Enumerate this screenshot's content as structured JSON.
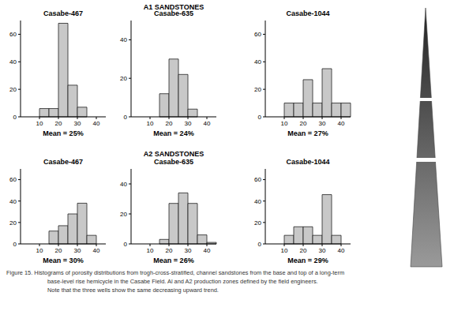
{
  "row_titles": [
    "A1 SANDSTONES",
    "A2 SANDSTONES"
  ],
  "caption": [
    "Figure 15. Histograms of porosity distributions from trogh-cross-stratified, channel sandstones from the base and top of a long-term",
    "base-level rise hemicycle in the Casabe Field. Al and A2 production zones defined by the field engineers.",
    "Note that the three wells show the same decreasing upward trend."
  ],
  "chart_data": [
    {
      "type": "histogram",
      "title": "Casabe-467",
      "annotation": "Mean = 25%",
      "bins": [
        10,
        15,
        20,
        25,
        30,
        35
      ],
      "values": [
        6,
        6,
        68,
        23,
        7
      ],
      "color": "#c8c8c8",
      "xlim": [
        0,
        45
      ],
      "xticks": [
        10,
        20,
        30,
        40
      ],
      "ylim": [
        0,
        70
      ],
      "yticks": [
        0,
        20,
        40,
        60
      ]
    },
    {
      "type": "histogram",
      "title": "Casabe-635",
      "annotation": "Mean = 24%",
      "bins": [
        15,
        20,
        25,
        30,
        35
      ],
      "values": [
        12,
        30,
        22,
        4
      ],
      "color": "#c8c8c8",
      "xlim": [
        0,
        45
      ],
      "xticks": [
        10,
        20,
        30,
        40
      ],
      "ylim": [
        0,
        50
      ],
      "yticks": [
        0,
        20,
        40
      ]
    },
    {
      "type": "histogram",
      "title": "Casabe-1044",
      "annotation": "Mean = 27%",
      "bins": [
        10,
        15,
        20,
        25,
        30,
        35,
        40,
        45
      ],
      "values": [
        10,
        10,
        27,
        10,
        35,
        10,
        10
      ],
      "color": "#c8c8c8",
      "xlim": [
        0,
        45
      ],
      "xticks": [
        10,
        20,
        30,
        40
      ],
      "ylim": [
        0,
        70
      ],
      "yticks": [
        0,
        20,
        40,
        60
      ]
    },
    {
      "type": "histogram",
      "title": "Casabe-467",
      "annotation": "Mean = 30%",
      "bins": [
        15,
        20,
        25,
        30,
        35,
        40
      ],
      "values": [
        12,
        17,
        28,
        38,
        8
      ],
      "color": "#c8c8c8",
      "xlim": [
        0,
        45
      ],
      "xticks": [
        10,
        20,
        30,
        40
      ],
      "ylim": [
        0,
        70
      ],
      "yticks": [
        0,
        20,
        40,
        60
      ]
    },
    {
      "type": "histogram",
      "title": "Casabe-635",
      "annotation": "Mean = 26%",
      "bins": [
        15,
        20,
        25,
        30,
        35,
        40,
        45
      ],
      "values": [
        3,
        27,
        34,
        27,
        6,
        1
      ],
      "color": "#c8c8c8",
      "xlim": [
        0,
        45
      ],
      "xticks": [
        10,
        20,
        30,
        40
      ],
      "ylim": [
        0,
        50
      ],
      "yticks": [
        0,
        20,
        40
      ]
    },
    {
      "type": "histogram",
      "title": "Casabe-1044",
      "annotation": "Mean = 29%",
      "bins": [
        10,
        15,
        20,
        25,
        30,
        35,
        40
      ],
      "values": [
        8,
        16,
        16,
        8,
        46,
        8
      ],
      "color": "#c8c8c8",
      "xlim": [
        0,
        45
      ],
      "xticks": [
        10,
        20,
        30,
        40
      ],
      "ylim": [
        0,
        70
      ],
      "yticks": [
        0,
        20,
        40,
        60
      ]
    }
  ]
}
